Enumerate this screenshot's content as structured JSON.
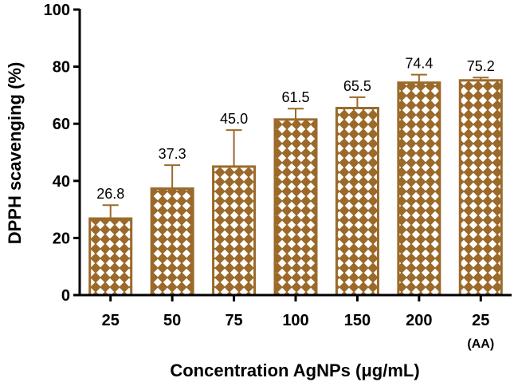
{
  "chart_data": {
    "type": "bar",
    "title": "",
    "xlabel": "Concentration AgNPs (μg/mL)",
    "ylabel": "DPPH scavenging (%)",
    "ylim": [
      0,
      100
    ],
    "yticks": [
      0,
      20,
      40,
      60,
      80,
      100
    ],
    "categories": [
      "25",
      "50",
      "75",
      "100",
      "150",
      "200",
      "25"
    ],
    "category_sublabels": [
      "",
      "",
      "",
      "",
      "",
      "",
      "(AA)"
    ],
    "values": [
      26.8,
      37.3,
      45.0,
      61.5,
      65.5,
      74.4,
      75.2
    ],
    "value_labels": [
      "26.8",
      "37.3",
      "45.0",
      "61.5",
      "65.5",
      "74.4",
      "75.2"
    ],
    "error_upper": [
      31.5,
      45.5,
      57.8,
      65.3,
      69.3,
      77.2,
      76.2
    ],
    "legend": "none",
    "grid": false,
    "colors": {
      "bar": "#9b6a2a",
      "error": "#9b6a2a",
      "axis": "#000000"
    }
  }
}
